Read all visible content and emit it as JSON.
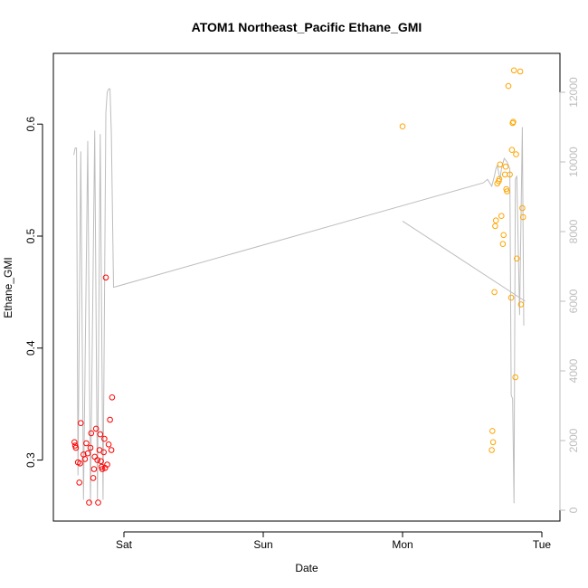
{
  "chart_data": {
    "type": "scatter",
    "title": "ATOM1 Northeast_Pacific Ethane_GMI",
    "xlabel": "Date",
    "ylabel": "Ethane_GMI",
    "x_ticks": [
      "Sat",
      "Sun",
      "Mon",
      "Tue"
    ],
    "x_range_days": [
      0,
      3.05
    ],
    "ylim": [
      0.25,
      0.65
    ],
    "y_ticks": [
      0.3,
      0.4,
      0.5,
      0.6
    ],
    "y2lim": [
      0,
      12300
    ],
    "y2_ticks": [
      0,
      2000,
      4000,
      6000,
      8000,
      10000,
      12000
    ],
    "colors": {
      "series1": "#ff0000",
      "series2": "#ffa500",
      "altitude_line": "#bdbdbd",
      "axis": "#000000"
    },
    "series": [
      {
        "points": [
          [
            -0.35,
            0.313
          ],
          [
            -0.355,
            0.316
          ],
          [
            -0.345,
            0.311
          ],
          [
            -0.33,
            0.298
          ],
          [
            -0.32,
            0.28
          ],
          [
            -0.315,
            0.297
          ],
          [
            -0.31,
            0.333
          ],
          [
            -0.29,
            0.305
          ],
          [
            -0.28,
            0.301
          ],
          [
            -0.27,
            0.315
          ],
          [
            -0.26,
            0.306
          ],
          [
            -0.25,
            0.262
          ],
          [
            -0.24,
            0.311
          ],
          [
            -0.235,
            0.324
          ],
          [
            -0.22,
            0.284
          ],
          [
            -0.215,
            0.292
          ],
          [
            -0.21,
            0.303
          ],
          [
            -0.2,
            0.328
          ],
          [
            -0.19,
            0.3
          ],
          [
            -0.185,
            0.262
          ],
          [
            -0.175,
            0.309
          ],
          [
            -0.17,
            0.323
          ],
          [
            -0.165,
            0.299
          ],
          [
            -0.16,
            0.294
          ],
          [
            -0.155,
            0.292
          ],
          [
            -0.145,
            0.307
          ],
          [
            -0.14,
            0.319
          ],
          [
            -0.135,
            0.293
          ],
          [
            -0.13,
            0.463
          ],
          [
            -0.12,
            0.296
          ],
          [
            -0.11,
            0.314
          ],
          [
            -0.1,
            0.336
          ],
          [
            -0.09,
            0.309
          ],
          [
            -0.085,
            0.356
          ]
        ]
      },
      {
        "points": [
          [
            2.0,
            0.598
          ],
          [
            2.64,
            0.309
          ],
          [
            2.645,
            0.326
          ],
          [
            2.65,
            0.316
          ],
          [
            2.66,
            0.45
          ],
          [
            2.665,
            0.509
          ],
          [
            2.67,
            0.514
          ],
          [
            2.68,
            0.547
          ],
          [
            2.69,
            0.549
          ],
          [
            2.695,
            0.551
          ],
          [
            2.7,
            0.564
          ],
          [
            2.71,
            0.518
          ],
          [
            2.72,
            0.493
          ],
          [
            2.725,
            0.501
          ],
          [
            2.735,
            0.555
          ],
          [
            2.74,
            0.562
          ],
          [
            2.745,
            0.542
          ],
          [
            2.75,
            0.54
          ],
          [
            2.76,
            0.634
          ],
          [
            2.77,
            0.555
          ],
          [
            2.78,
            0.445
          ],
          [
            2.785,
            0.577
          ],
          [
            2.79,
            0.601
          ],
          [
            2.795,
            0.602
          ],
          [
            2.8,
            0.648
          ],
          [
            2.81,
            0.374
          ],
          [
            2.815,
            0.573
          ],
          [
            2.82,
            0.48
          ],
          [
            2.845,
            0.647
          ],
          [
            2.85,
            0.439
          ],
          [
            2.86,
            0.525
          ],
          [
            2.865,
            0.517
          ]
        ]
      }
    ],
    "altitude_line": [
      [
        -0.36,
        10200
      ],
      [
        -0.35,
        10400
      ],
      [
        -0.34,
        10400
      ],
      [
        -0.33,
        1000
      ],
      [
        -0.31,
        10300
      ],
      [
        -0.29,
        300
      ],
      [
        -0.26,
        10600
      ],
      [
        -0.24,
        200
      ],
      [
        -0.21,
        10900
      ],
      [
        -0.19,
        300
      ],
      [
        -0.17,
        10800
      ],
      [
        -0.15,
        300
      ],
      [
        -0.13,
        11400
      ],
      [
        -0.12,
        12000
      ],
      [
        -0.11,
        12100
      ],
      [
        -0.1,
        12100
      ],
      [
        -0.09,
        10800
      ],
      [
        -0.075,
        6400
      ],
      [
        2.58,
        9400
      ],
      [
        2.61,
        9500
      ],
      [
        2.64,
        9300
      ],
      [
        2.66,
        9600
      ],
      [
        2.67,
        9800
      ],
      [
        2.68,
        9900
      ],
      [
        2.7,
        9500
      ],
      [
        2.71,
        9800
      ],
      [
        2.73,
        10100
      ],
      [
        2.75,
        10000
      ],
      [
        2.77,
        9800
      ],
      [
        2.78,
        3300
      ],
      [
        2.79,
        3200
      ],
      [
        2.8,
        200
      ],
      [
        2.81,
        9500
      ],
      [
        2.82,
        9600
      ],
      [
        2.84,
        5600
      ],
      [
        2.86,
        11000
      ],
      [
        2.87,
        5300
      ]
    ],
    "altitude_line_2": [
      [
        2.0,
        8300
      ],
      [
        2.88,
        6000
      ]
    ]
  }
}
